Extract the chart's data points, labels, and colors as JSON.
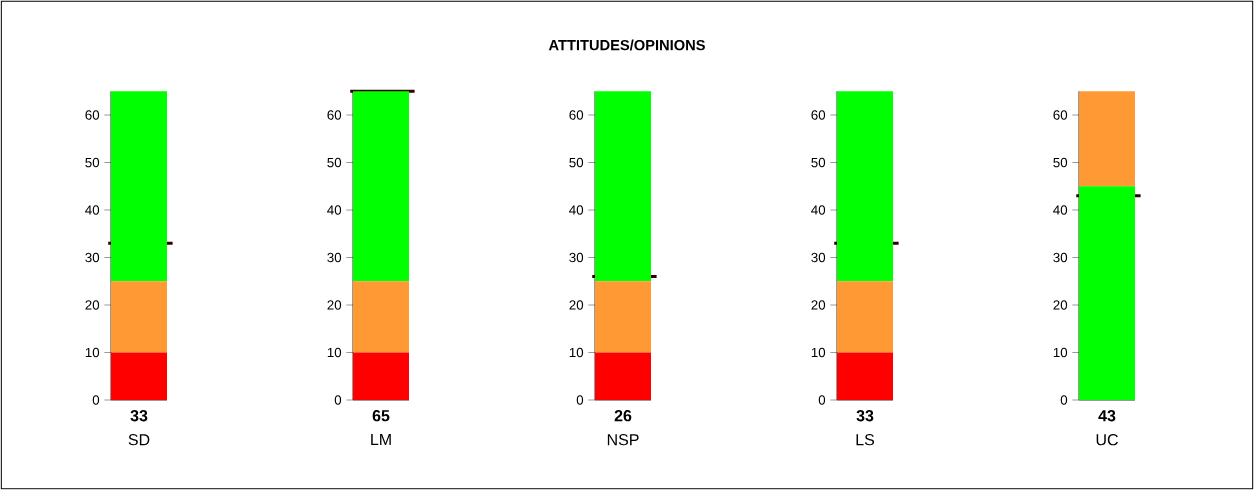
{
  "chart_data": [
    {
      "type": "other",
      "title": "ATTITUDES/OPINIONS"
    },
    {
      "type": "bar",
      "stacked": true,
      "categories": [
        "SD"
      ],
      "annotations": [
        "33"
      ],
      "series": [
        {
          "color": "#ff0000",
          "values": [
            10
          ]
        },
        {
          "color": "#ff9933",
          "values": [
            15
          ]
        },
        {
          "color": "#00ff00",
          "values": [
            40
          ]
        }
      ],
      "ylim": [
        0,
        65
      ],
      "yticks": [
        0,
        10,
        20,
        30,
        40,
        50,
        60
      ],
      "ref_lines": [
        {
          "axis": "y",
          "value": 33,
          "color": "#330000"
        }
      ]
    },
    {
      "type": "bar",
      "stacked": true,
      "categories": [
        "LM"
      ],
      "annotations": [
        "65"
      ],
      "series": [
        {
          "color": "#ff0000",
          "values": [
            10
          ]
        },
        {
          "color": "#ff9933",
          "values": [
            15
          ]
        },
        {
          "color": "#00ff00",
          "values": [
            40
          ]
        }
      ],
      "ylim": [
        0,
        65
      ],
      "yticks": [
        0,
        10,
        20,
        30,
        40,
        50,
        60
      ],
      "ref_lines": [
        {
          "axis": "y",
          "value": 65,
          "color": "#330000"
        }
      ]
    },
    {
      "type": "bar",
      "stacked": true,
      "categories": [
        "NSP"
      ],
      "annotations": [
        "26"
      ],
      "series": [
        {
          "color": "#ff0000",
          "values": [
            10
          ]
        },
        {
          "color": "#ff9933",
          "values": [
            15
          ]
        },
        {
          "color": "#00ff00",
          "values": [
            40
          ]
        }
      ],
      "ylim": [
        0,
        65
      ],
      "yticks": [
        0,
        10,
        20,
        30,
        40,
        50,
        60
      ],
      "ref_lines": [
        {
          "axis": "y",
          "value": 26,
          "color": "#330000"
        }
      ]
    },
    {
      "type": "bar",
      "stacked": true,
      "categories": [
        "LS"
      ],
      "annotations": [
        "33"
      ],
      "series": [
        {
          "color": "#ff0000",
          "values": [
            10
          ]
        },
        {
          "color": "#ff9933",
          "values": [
            15
          ]
        },
        {
          "color": "#00ff00",
          "values": [
            40
          ]
        }
      ],
      "ylim": [
        0,
        65
      ],
      "yticks": [
        0,
        10,
        20,
        30,
        40,
        50,
        60
      ],
      "ref_lines": [
        {
          "axis": "y",
          "value": 33,
          "color": "#330000"
        }
      ]
    },
    {
      "type": "bar",
      "stacked": true,
      "categories": [
        "UC"
      ],
      "annotations": [
        "43"
      ],
      "series": [
        {
          "color": "#00ff00",
          "values": [
            45
          ]
        },
        {
          "color": "#ff9933",
          "values": [
            20
          ]
        }
      ],
      "ylim": [
        0,
        65
      ],
      "yticks": [
        0,
        10,
        20,
        30,
        40,
        50,
        60
      ],
      "ref_lines": [
        {
          "axis": "y",
          "value": 43,
          "color": "#330000"
        }
      ]
    }
  ]
}
